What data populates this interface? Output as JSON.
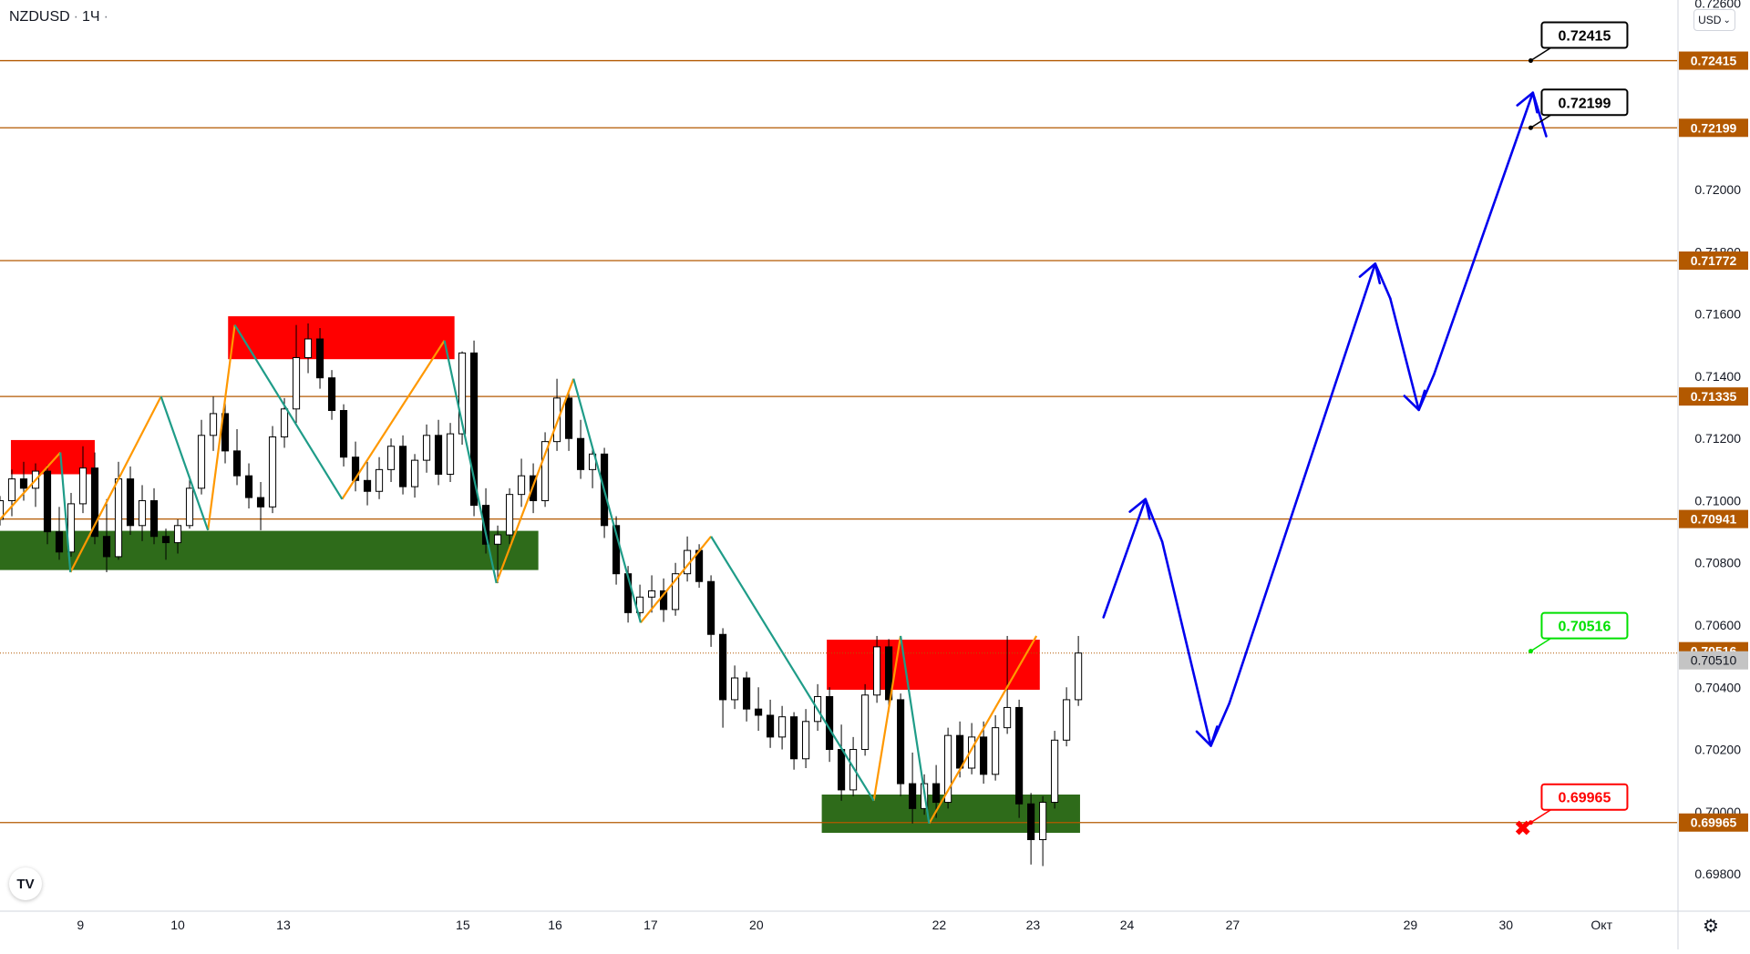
{
  "header": {
    "symbol": "NZDUSD",
    "interval": "1Ч",
    "sep": "·",
    "currency_button": "USD",
    "currency_chevron": "⌄",
    "logo_text": "TV",
    "settings_icon": "⚙"
  },
  "colors": {
    "level_line": "#b35900",
    "level_label_bg": "#b35900",
    "current_price_bg": "#c4c4c4",
    "supply_zone": "#ff0000",
    "demand_zone": "#2e6b1a",
    "zigzag_orange": "#ff9800",
    "zigzag_teal": "#1f9c88",
    "projection": "#0000ee",
    "up_candle": "#ffffff",
    "down_candle": "#000000",
    "callout_green": "#00e000",
    "callout_red": "#ff0000"
  },
  "chart_data": {
    "type": "candlestick",
    "title": "NZDUSD · 1Ч",
    "y_axis": {
      "range": [
        0.6968,
        0.7261
      ],
      "ticks": [
        "0.72600",
        "0.72000",
        "0.71800",
        "0.71600",
        "0.71400",
        "0.71200",
        "0.71000",
        "0.70800",
        "0.70600",
        "0.70400",
        "0.70200",
        "0.70000",
        "0.69800"
      ]
    },
    "x_axis": {
      "range": [
        0,
        100
      ],
      "ticks": [
        {
          "label": "9",
          "x": 4.8
        },
        {
          "label": "10",
          "x": 10.6
        },
        {
          "label": "13",
          "x": 16.9
        },
        {
          "label": "15",
          "x": 27.6
        },
        {
          "label": "16",
          "x": 33.1
        },
        {
          "label": "17",
          "x": 38.8
        },
        {
          "label": "20",
          "x": 45.1
        },
        {
          "label": "22",
          "x": 56.0
        },
        {
          "label": "23",
          "x": 61.6
        },
        {
          "label": "24",
          "x": 67.2
        },
        {
          "label": "27",
          "x": 73.5
        },
        {
          "label": "29",
          "x": 84.1
        },
        {
          "label": "30",
          "x": 89.8
        },
        {
          "label": "Окт",
          "x": 95.5
        }
      ]
    },
    "price_levels": [
      {
        "label": "0.72415",
        "value": 0.72415
      },
      {
        "label": "0.72199",
        "value": 0.72199
      },
      {
        "label": "0.71772",
        "value": 0.71772
      },
      {
        "label": "0.71335",
        "value": 0.71335
      },
      {
        "label": "0.70941",
        "value": 0.70941
      },
      {
        "label": "0.69965",
        "value": 0.69965
      }
    ],
    "extra_axis_labels": [
      {
        "label": "0.70516",
        "value": 0.70516
      },
      {
        "label": "0.70510",
        "value": 0.7051
      }
    ],
    "callouts": [
      {
        "label": "0.72415",
        "value": 0.72415,
        "x": 91.6,
        "style": "black"
      },
      {
        "label": "0.72199",
        "value": 0.72199,
        "x": 91.6,
        "style": "black"
      },
      {
        "label": "0.70516",
        "value": 0.70516,
        "x": 91.6,
        "style": "green"
      },
      {
        "label": "0.69965",
        "value": 0.69965,
        "x": 91.6,
        "style": "red"
      }
    ],
    "stop_marker": {
      "x": 90.8,
      "value": 0.69948,
      "symbol": "✖"
    },
    "zones": [
      {
        "kind": "supply",
        "x0": 0.65,
        "x1": 5.65,
        "y0": 0.71085,
        "y1": 0.71195
      },
      {
        "kind": "supply",
        "x0": 13.6,
        "x1": 27.1,
        "y0": 0.71455,
        "y1": 0.71593
      },
      {
        "kind": "supply",
        "x0": 49.3,
        "x1": 62.0,
        "y0": 0.70392,
        "y1": 0.70553
      },
      {
        "kind": "demand",
        "x0": 0.0,
        "x1": 32.1,
        "y0": 0.70777,
        "y1": 0.70903
      },
      {
        "kind": "demand",
        "x0": 49.0,
        "x1": 64.4,
        "y0": 0.69932,
        "y1": 0.70055
      }
    ],
    "zigzag_orange": [
      [
        [
          0.0,
          0.7094
        ],
        [
          3.6,
          0.71155
        ]
      ],
      [
        [
          4.2,
          0.7077
        ],
        [
          9.6,
          0.71335
        ]
      ],
      [
        [
          12.4,
          0.70905
        ],
        [
          14.0,
          0.71565
        ]
      ],
      [
        [
          20.4,
          0.71005
        ],
        [
          26.5,
          0.71515
        ]
      ],
      [
        [
          29.6,
          0.70735
        ],
        [
          34.2,
          0.71392
        ]
      ],
      [
        [
          38.2,
          0.70608
        ],
        [
          42.4,
          0.70885
        ]
      ],
      [
        [
          52.1,
          0.70035
        ],
        [
          53.7,
          0.70565
        ]
      ],
      [
        [
          55.4,
          0.69962
        ],
        [
          61.8,
          0.70565
        ]
      ]
    ],
    "zigzag_teal": [
      [
        [
          3.6,
          0.71155
        ],
        [
          4.2,
          0.7077
        ]
      ],
      [
        [
          9.6,
          0.71335
        ],
        [
          12.4,
          0.70905
        ]
      ],
      [
        [
          14.0,
          0.71565
        ],
        [
          20.4,
          0.71005
        ]
      ],
      [
        [
          26.5,
          0.71515
        ],
        [
          29.6,
          0.70735
        ]
      ],
      [
        [
          34.2,
          0.71392
        ],
        [
          38.2,
          0.70608
        ]
      ],
      [
        [
          42.4,
          0.70885
        ],
        [
          52.1,
          0.70035
        ]
      ],
      [
        [
          53.7,
          0.70565
        ],
        [
          55.4,
          0.69962
        ]
      ]
    ],
    "projection_path": [
      [
        65.8,
        0.70625
      ],
      [
        68.3,
        0.71005
      ],
      [
        69.3,
        0.70868
      ],
      [
        72.2,
        0.70212
      ],
      [
        73.3,
        0.70348
      ],
      [
        82.0,
        0.71762
      ],
      [
        82.9,
        0.7165
      ],
      [
        84.6,
        0.71292
      ],
      [
        85.5,
        0.71405
      ],
      [
        91.4,
        0.72312
      ],
      [
        92.2,
        0.72172
      ]
    ],
    "projection_arrowheads": [
      {
        "tip": [
          68.3,
          0.71005
        ],
        "from": [
          65.8,
          0.70625
        ]
      },
      {
        "tip": [
          72.2,
          0.70212
        ],
        "from": [
          69.3,
          0.70868
        ]
      },
      {
        "tip": [
          82.0,
          0.71762
        ],
        "from": [
          73.3,
          0.70348
        ]
      },
      {
        "tip": [
          84.6,
          0.71292
        ],
        "from": [
          82.9,
          0.7165
        ]
      },
      {
        "tip": [
          91.4,
          0.72312
        ],
        "from": [
          85.5,
          0.71405
        ]
      }
    ],
    "candles_ohlc": [
      [
        0.7094,
        0.71015,
        0.7092,
        0.71
      ],
      [
        0.71,
        0.711,
        0.7095,
        0.7107
      ],
      [
        0.7107,
        0.71125,
        0.71,
        0.7104
      ],
      [
        0.7104,
        0.7112,
        0.7098,
        0.71095
      ],
      [
        0.71095,
        0.71115,
        0.7086,
        0.709
      ],
      [
        0.709,
        0.7098,
        0.7081,
        0.70835
      ],
      [
        0.70835,
        0.71025,
        0.7082,
        0.7099
      ],
      [
        0.7099,
        0.71175,
        0.7096,
        0.71105
      ],
      [
        0.71105,
        0.71155,
        0.7086,
        0.70885
      ],
      [
        0.70885,
        0.71005,
        0.7077,
        0.7082
      ],
      [
        0.7082,
        0.71125,
        0.7081,
        0.7107
      ],
      [
        0.7107,
        0.7111,
        0.7089,
        0.7092
      ],
      [
        0.7092,
        0.7105,
        0.7087,
        0.71
      ],
      [
        0.71,
        0.7104,
        0.7086,
        0.70885
      ],
      [
        0.70885,
        0.7091,
        0.7081,
        0.70865
      ],
      [
        0.70865,
        0.7094,
        0.7083,
        0.7092
      ],
      [
        0.7092,
        0.7108,
        0.7091,
        0.7104
      ],
      [
        0.7104,
        0.7126,
        0.7102,
        0.7121
      ],
      [
        0.7121,
        0.71335,
        0.7116,
        0.7128
      ],
      [
        0.7128,
        0.7132,
        0.7112,
        0.7116
      ],
      [
        0.7116,
        0.7123,
        0.7105,
        0.7108
      ],
      [
        0.7108,
        0.7112,
        0.70975,
        0.7101
      ],
      [
        0.7101,
        0.7106,
        0.70905,
        0.7098
      ],
      [
        0.7098,
        0.7124,
        0.7096,
        0.71205
      ],
      [
        0.71205,
        0.7133,
        0.7117,
        0.71295
      ],
      [
        0.71295,
        0.71565,
        0.7125,
        0.7146
      ],
      [
        0.7146,
        0.7157,
        0.7141,
        0.7152
      ],
      [
        0.7152,
        0.71555,
        0.7136,
        0.71395
      ],
      [
        0.71395,
        0.7142,
        0.7126,
        0.7129
      ],
      [
        0.7129,
        0.7131,
        0.7111,
        0.7114
      ],
      [
        0.7114,
        0.7119,
        0.7103,
        0.71065
      ],
      [
        0.71065,
        0.71125,
        0.70985,
        0.7103
      ],
      [
        0.7103,
        0.7114,
        0.71005,
        0.711
      ],
      [
        0.711,
        0.712,
        0.7106,
        0.71175
      ],
      [
        0.71175,
        0.7121,
        0.7102,
        0.71045
      ],
      [
        0.71045,
        0.7115,
        0.7101,
        0.7113
      ],
      [
        0.7113,
        0.71245,
        0.7109,
        0.7121
      ],
      [
        0.7121,
        0.7126,
        0.7105,
        0.71085
      ],
      [
        0.71085,
        0.7125,
        0.7106,
        0.71215
      ],
      [
        0.71215,
        0.7148,
        0.7118,
        0.71475
      ],
      [
        0.71475,
        0.71515,
        0.7095,
        0.70985
      ],
      [
        0.70985,
        0.7104,
        0.7083,
        0.7086
      ],
      [
        0.7086,
        0.7092,
        0.70735,
        0.7089
      ],
      [
        0.7089,
        0.7104,
        0.7086,
        0.7102
      ],
      [
        0.7102,
        0.71135,
        0.7098,
        0.7108
      ],
      [
        0.7108,
        0.7112,
        0.7096,
        0.71
      ],
      [
        0.71,
        0.7122,
        0.7098,
        0.7119
      ],
      [
        0.7119,
        0.71392,
        0.7116,
        0.7133
      ],
      [
        0.7133,
        0.7135,
        0.7116,
        0.712
      ],
      [
        0.712,
        0.7126,
        0.7107,
        0.711
      ],
      [
        0.711,
        0.7117,
        0.7104,
        0.7115
      ],
      [
        0.7115,
        0.7117,
        0.7088,
        0.7092
      ],
      [
        0.7092,
        0.7095,
        0.7073,
        0.70765
      ],
      [
        0.70765,
        0.7079,
        0.70608,
        0.7064
      ],
      [
        0.7064,
        0.7073,
        0.7061,
        0.7069
      ],
      [
        0.7069,
        0.7076,
        0.7064,
        0.7071
      ],
      [
        0.7071,
        0.7075,
        0.7061,
        0.7065
      ],
      [
        0.7065,
        0.708,
        0.7063,
        0.70765
      ],
      [
        0.70765,
        0.70885,
        0.7074,
        0.7084
      ],
      [
        0.7084,
        0.7086,
        0.7072,
        0.7074
      ],
      [
        0.7074,
        0.7076,
        0.7053,
        0.7057
      ],
      [
        0.7057,
        0.7059,
        0.7027,
        0.7036
      ],
      [
        0.7036,
        0.7047,
        0.7033,
        0.7043
      ],
      [
        0.7043,
        0.7045,
        0.7029,
        0.7033
      ],
      [
        0.7033,
        0.704,
        0.7026,
        0.7031
      ],
      [
        0.7031,
        0.7036,
        0.70205,
        0.7024
      ],
      [
        0.7024,
        0.7034,
        0.702,
        0.70305
      ],
      [
        0.70305,
        0.7032,
        0.70135,
        0.7017
      ],
      [
        0.7017,
        0.7033,
        0.7014,
        0.7029
      ],
      [
        0.7029,
        0.7041,
        0.7026,
        0.7037
      ],
      [
        0.7037,
        0.704,
        0.7016,
        0.702
      ],
      [
        0.702,
        0.7028,
        0.70035,
        0.7007
      ],
      [
        0.7007,
        0.7024,
        0.7005,
        0.702
      ],
      [
        0.702,
        0.7041,
        0.7018,
        0.70375
      ],
      [
        0.70375,
        0.70565,
        0.7035,
        0.7053
      ],
      [
        0.7053,
        0.70555,
        0.7032,
        0.7036
      ],
      [
        0.7036,
        0.7038,
        0.7005,
        0.7009
      ],
      [
        0.7009,
        0.7019,
        0.69962,
        0.7001
      ],
      [
        0.7001,
        0.7012,
        0.6999,
        0.7009
      ],
      [
        0.7009,
        0.7015,
        0.6998,
        0.7003
      ],
      [
        0.7003,
        0.7027,
        0.7001,
        0.70245
      ],
      [
        0.70245,
        0.7029,
        0.7011,
        0.7014
      ],
      [
        0.7014,
        0.70285,
        0.7012,
        0.7024
      ],
      [
        0.7024,
        0.7029,
        0.7009,
        0.7012
      ],
      [
        0.7012,
        0.7031,
        0.701,
        0.7027
      ],
      [
        0.7027,
        0.70565,
        0.7025,
        0.70335
      ],
      [
        0.70335,
        0.7036,
        0.6998,
        0.70025
      ],
      [
        0.70025,
        0.7006,
        0.6983,
        0.6991
      ],
      [
        0.6991,
        0.7005,
        0.69825,
        0.7003
      ],
      [
        0.7003,
        0.7026,
        0.7001,
        0.7023
      ],
      [
        0.7023,
        0.704,
        0.7021,
        0.7036
      ],
      [
        0.7036,
        0.70565,
        0.7034,
        0.7051
      ]
    ],
    "candles_x_range": [
      0.0,
      64.3
    ]
  }
}
